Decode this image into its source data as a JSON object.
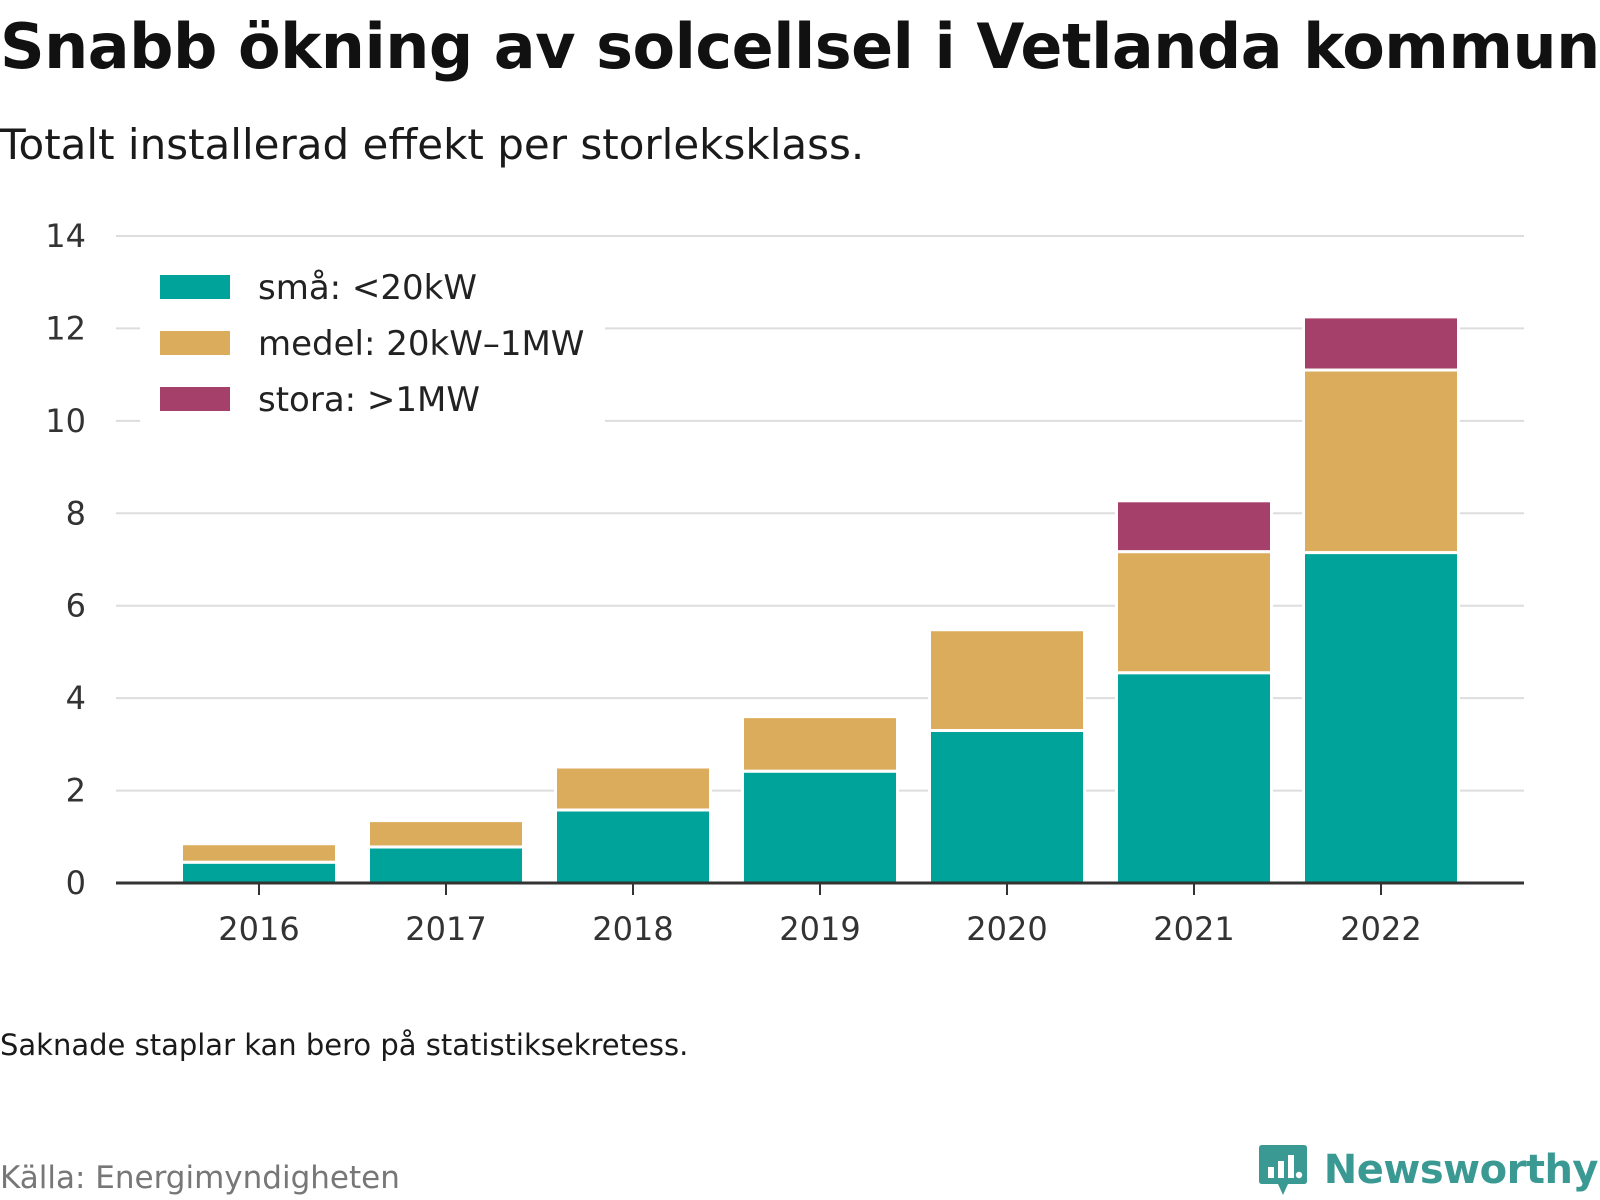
{
  "title": "Snabb ökning av solcellsel i Vetlanda kommun",
  "subtitle": "Totalt installerad effekt per storleksklass.",
  "note": "Saknade staplar kan bero på statistiksekretess.",
  "source": "Källa: Energimyndigheten",
  "brand": {
    "name": "Newsworthy",
    "logo_icon": "bar-chart-speech-bubble-icon",
    "color": "#3a9a93"
  },
  "chart_data": {
    "type": "bar",
    "stacked": true,
    "categories": [
      "2016",
      "2017",
      "2018",
      "2019",
      "2020",
      "2021",
      "2022"
    ],
    "series": [
      {
        "name": "små: <20kW",
        "color": "#00a39a",
        "values": [
          0.45,
          0.78,
          1.58,
          2.42,
          3.3,
          4.55,
          7.15
        ]
      },
      {
        "name": "medel: 20kW–1MW",
        "color": "#dbac5b",
        "values": [
          0.4,
          0.57,
          0.93,
          1.18,
          2.18,
          2.62,
          3.95
        ]
      },
      {
        "name": "stora: >1MW",
        "color": "#a5406a",
        "values": [
          0,
          0,
          0,
          0,
          0,
          1.1,
          1.15
        ]
      }
    ],
    "ylim": [
      0,
      14
    ],
    "yticks": [
      0,
      2,
      4,
      6,
      8,
      10,
      12,
      14
    ],
    "xlabel": "",
    "ylabel": "",
    "grid": true,
    "legend": "top-left"
  }
}
